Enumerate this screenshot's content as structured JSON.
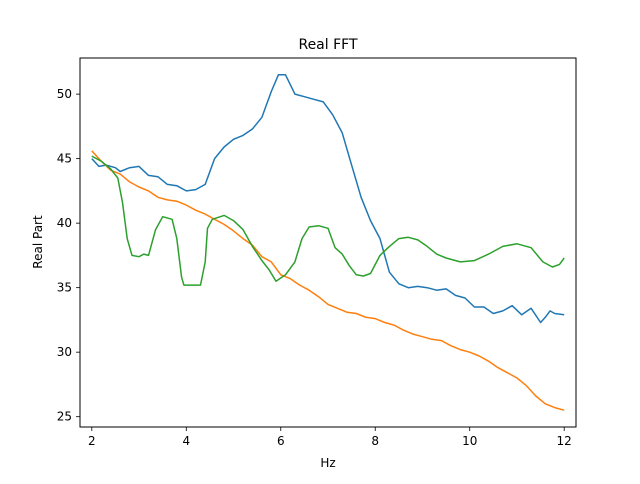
{
  "chart_data": {
    "type": "line",
    "title": "Real FFT",
    "xlabel": "Hz",
    "ylabel": "Real Part",
    "xlim": [
      1.75,
      12.25
    ],
    "ylim": [
      24.2,
      52.8
    ],
    "xticks": [
      2,
      4,
      6,
      8,
      10,
      12
    ],
    "yticks": [
      25,
      30,
      35,
      40,
      45,
      50
    ],
    "grid": false,
    "legend": "none",
    "series": [
      {
        "color": "#1f77b4",
        "x": [
          2.0,
          2.15,
          2.3,
          2.5,
          2.6,
          2.8,
          3.0,
          3.2,
          3.4,
          3.6,
          3.8,
          4.0,
          4.2,
          4.4,
          4.6,
          4.8,
          5.0,
          5.2,
          5.4,
          5.6,
          5.8,
          5.95,
          6.1,
          6.3,
          6.5,
          6.7,
          6.9,
          7.1,
          7.3,
          7.5,
          7.7,
          7.9,
          8.1,
          8.3,
          8.5,
          8.7,
          8.9,
          9.1,
          9.3,
          9.5,
          9.7,
          9.9,
          10.1,
          10.3,
          10.5,
          10.7,
          10.9,
          11.1,
          11.3,
          11.5,
          11.6,
          11.7,
          11.8,
          12.0
        ],
        "y": [
          45.0,
          44.4,
          44.5,
          44.3,
          44.0,
          44.3,
          44.4,
          43.7,
          43.6,
          43.0,
          42.9,
          42.5,
          42.6,
          43.0,
          45.0,
          45.9,
          46.5,
          46.8,
          47.3,
          48.2,
          50.2,
          51.5,
          51.5,
          50.0,
          49.8,
          49.6,
          49.4,
          48.4,
          47.0,
          44.5,
          42.0,
          40.2,
          38.8,
          36.2,
          35.3,
          35.0,
          35.1,
          35.0,
          34.8,
          34.9,
          34.4,
          34.2,
          33.5,
          33.5,
          33.0,
          33.2,
          33.6,
          32.9,
          33.4,
          32.3,
          32.7,
          33.2,
          33.0,
          32.9
        ]
      },
      {
        "color": "#ff7f0e",
        "x": [
          2.0,
          2.2,
          2.4,
          2.6,
          2.8,
          3.0,
          3.2,
          3.4,
          3.6,
          3.8,
          4.0,
          4.2,
          4.4,
          4.6,
          4.8,
          5.0,
          5.2,
          5.4,
          5.6,
          5.8,
          6.0,
          6.2,
          6.4,
          6.6,
          6.8,
          7.0,
          7.2,
          7.4,
          7.6,
          7.8,
          8.0,
          8.2,
          8.4,
          8.6,
          8.8,
          9.0,
          9.2,
          9.4,
          9.6,
          9.8,
          10.0,
          10.2,
          10.4,
          10.6,
          10.8,
          11.0,
          11.2,
          11.4,
          11.6,
          11.8,
          12.0
        ],
        "y": [
          45.6,
          44.8,
          44.1,
          43.8,
          43.2,
          42.8,
          42.5,
          42.0,
          41.8,
          41.7,
          41.4,
          41.0,
          40.7,
          40.3,
          39.9,
          39.4,
          38.8,
          38.3,
          37.4,
          37.0,
          36.0,
          35.7,
          35.2,
          34.8,
          34.3,
          33.7,
          33.4,
          33.1,
          33.0,
          32.7,
          32.6,
          32.3,
          32.1,
          31.7,
          31.4,
          31.2,
          31.0,
          30.9,
          30.5,
          30.2,
          30.0,
          29.7,
          29.3,
          28.8,
          28.4,
          28.0,
          27.4,
          26.6,
          26.0,
          25.7,
          25.5
        ]
      },
      {
        "color": "#2ca02c",
        "x": [
          2.0,
          2.2,
          2.4,
          2.55,
          2.65,
          2.75,
          2.85,
          3.0,
          3.1,
          3.2,
          3.35,
          3.5,
          3.7,
          3.8,
          3.9,
          3.95,
          4.1,
          4.3,
          4.4,
          4.45,
          4.55,
          4.8,
          5.0,
          5.2,
          5.4,
          5.6,
          5.75,
          5.9,
          6.1,
          6.3,
          6.45,
          6.6,
          6.8,
          7.0,
          7.15,
          7.3,
          7.45,
          7.6,
          7.75,
          7.9,
          8.1,
          8.3,
          8.5,
          8.7,
          8.9,
          9.1,
          9.3,
          9.5,
          9.8,
          10.1,
          10.4,
          10.7,
          11.0,
          11.3,
          11.55,
          11.75,
          11.9,
          12.0
        ],
        "y": [
          45.2,
          44.8,
          44.2,
          43.5,
          41.6,
          38.8,
          37.5,
          37.4,
          37.6,
          37.5,
          39.5,
          40.5,
          40.3,
          38.8,
          35.8,
          35.2,
          35.2,
          35.2,
          37.0,
          39.6,
          40.3,
          40.6,
          40.2,
          39.5,
          38.2,
          37.1,
          36.4,
          35.5,
          36.0,
          37.0,
          38.8,
          39.7,
          39.8,
          39.6,
          38.1,
          37.6,
          36.7,
          36.0,
          35.9,
          36.1,
          37.5,
          38.2,
          38.8,
          38.9,
          38.7,
          38.2,
          37.6,
          37.3,
          37.0,
          37.1,
          37.6,
          38.2,
          38.4,
          38.1,
          37.0,
          36.6,
          36.8,
          37.3
        ]
      }
    ]
  }
}
